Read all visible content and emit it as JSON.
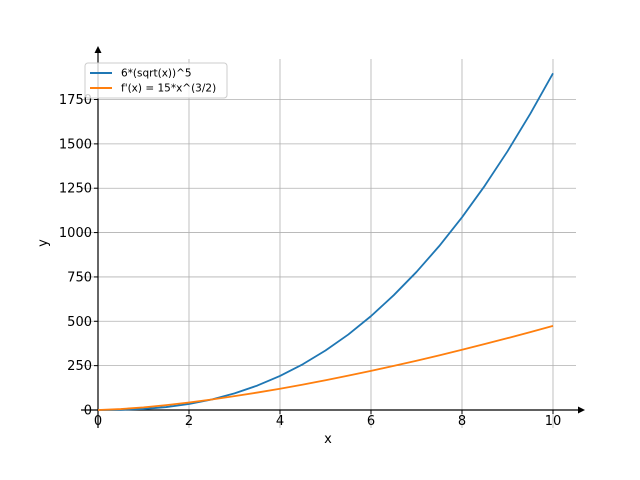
{
  "chart_data": {
    "type": "line",
    "xlabel": "x",
    "ylabel": "y",
    "xlim": [
      0,
      10.5
    ],
    "ylim": [
      -20,
      1960
    ],
    "xticks": [
      0,
      2,
      4,
      6,
      8,
      10
    ],
    "yticks": [
      0,
      250,
      500,
      750,
      1000,
      1250,
      1500,
      1750
    ],
    "grid": true,
    "legend_position": "top-left",
    "series": [
      {
        "name": "6*(sqrt(x))^5",
        "color": "#1f77b4",
        "x": [
          0,
          0.5,
          1,
          1.5,
          2,
          2.5,
          3,
          3.5,
          4,
          4.5,
          5,
          5.5,
          6,
          6.5,
          7,
          7.5,
          8,
          8.5,
          9,
          9.5,
          10
        ],
        "y": [
          0,
          1.06,
          6,
          16.53,
          33.94,
          59.29,
          93.53,
          137.51,
          192,
          257.69,
          335.41,
          425.2,
          529.09,
          647.08,
          778.1,
          924.17,
          1086.07,
          1263.58,
          1458,
          1669.45,
          1897.37
        ]
      },
      {
        "name": "f'(x) = 15*x^(3/2)",
        "color": "#ff7f0e",
        "x": [
          0,
          0.5,
          1,
          1.5,
          2,
          2.5,
          3,
          3.5,
          4,
          4.5,
          5,
          5.5,
          6,
          6.5,
          7,
          7.5,
          8,
          8.5,
          9,
          9.5,
          10
        ],
        "y": [
          0,
          5.3,
          15,
          27.56,
          42.43,
          59.29,
          77.94,
          98.22,
          120,
          143.19,
          167.71,
          193.48,
          220.45,
          248.57,
          277.79,
          308.06,
          339.41,
          371.72,
          405,
          439.22,
          474.34
        ]
      }
    ]
  }
}
